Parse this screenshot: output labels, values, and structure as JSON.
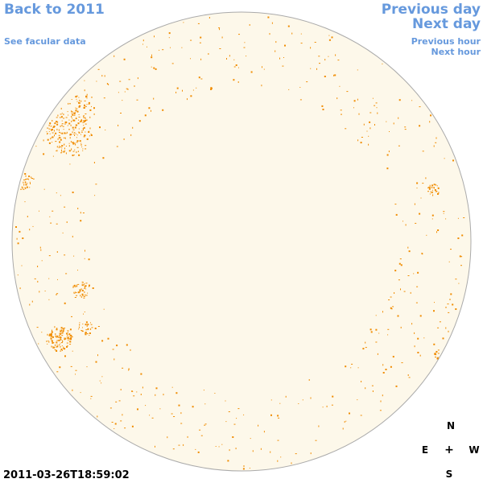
{
  "nav": {
    "back_label": "Back to 2011",
    "facular_label": "See facular data",
    "prev_day_label": "Previous day",
    "next_day_label": "Next day",
    "prev_hour_label": "Previous hour",
    "next_hour_label": "Next hour"
  },
  "timestamp": "2011-03-26T18:59:02",
  "compass": {
    "north": "N",
    "east": "E",
    "center": "+",
    "west": "W",
    "south": "S"
  },
  "colors": {
    "link": "#6699dd",
    "disk_fill": "#fdf8ea",
    "disk_stroke": "#aaaaaa",
    "feature": "#f08c00"
  }
}
